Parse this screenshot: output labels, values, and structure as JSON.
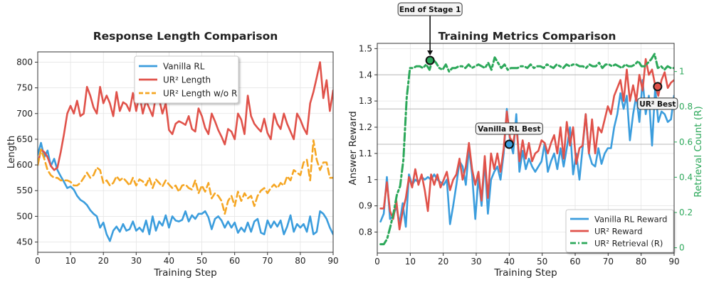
{
  "chart_data": [
    {
      "type": "line",
      "title": "Response Length Comparison",
      "xlabel": "Training Step",
      "ylabel": "Length",
      "xlim": [
        0,
        90
      ],
      "ylim": [
        430,
        820
      ],
      "xticks": [
        0,
        10,
        20,
        30,
        40,
        50,
        60,
        70,
        80,
        90
      ],
      "yticks": [
        450,
        500,
        550,
        600,
        650,
        700,
        750,
        800
      ],
      "grid": true,
      "legend_position": "top-center",
      "series": [
        {
          "name": "Vanilla RL",
          "color": "#3b9ddd",
          "style": "solid",
          "values": [
            620,
            643,
            615,
            628,
            598,
            612,
            590,
            578,
            567,
            555,
            558,
            552,
            540,
            532,
            528,
            522,
            512,
            505,
            500,
            478,
            488,
            465,
            452,
            472,
            480,
            470,
            485,
            472,
            475,
            490,
            472,
            478,
            470,
            492,
            465,
            500,
            472,
            490,
            482,
            502,
            478,
            500,
            492,
            490,
            493,
            510,
            490,
            502,
            495,
            505,
            505,
            510,
            498,
            475,
            495,
            500,
            492,
            478,
            490,
            478,
            488,
            468,
            478,
            470,
            488,
            470,
            490,
            495,
            468,
            465,
            492,
            478,
            490,
            480,
            492,
            465,
            480,
            502,
            470,
            485,
            478,
            485,
            470,
            500,
            465,
            470,
            510,
            505,
            495,
            478,
            465
          ]
        },
        {
          "name": "UR² Length",
          "color": "#e0524a",
          "style": "solid",
          "values": [
            600,
            630,
            625,
            615,
            598,
            590,
            595,
            625,
            660,
            700,
            715,
            700,
            725,
            695,
            700,
            752,
            735,
            712,
            700,
            752,
            720,
            735,
            720,
            695,
            742,
            705,
            722,
            718,
            705,
            740,
            705,
            738,
            700,
            725,
            710,
            695,
            735,
            728,
            700,
            720,
            668,
            660,
            680,
            685,
            682,
            678,
            695,
            670,
            665,
            710,
            695,
            672,
            660,
            700,
            685,
            668,
            655,
            640,
            670,
            665,
            650,
            700,
            688,
            660,
            735,
            695,
            680,
            672,
            665,
            690,
            662,
            650,
            700,
            680,
            670,
            700,
            680,
            665,
            650,
            700,
            688,
            672,
            660,
            720,
            742,
            770,
            800,
            730,
            765,
            705,
            745,
            720
          ]
        },
        {
          "name": "UR² Length w/o R",
          "color": "#f5a623",
          "style": "dashed",
          "values": [
            600,
            630,
            612,
            590,
            580,
            575,
            575,
            570,
            570,
            570,
            567,
            560,
            560,
            565,
            575,
            585,
            575,
            580,
            595,
            590,
            565,
            570,
            560,
            565,
            578,
            570,
            575,
            568,
            560,
            575,
            560,
            572,
            568,
            560,
            575,
            555,
            572,
            565,
            558,
            570,
            562,
            555,
            560,
            548,
            560,
            562,
            555,
            552,
            570,
            545,
            560,
            548,
            565,
            535,
            545,
            540,
            530,
            505,
            530,
            540,
            520,
            548,
            530,
            545,
            535,
            540,
            520,
            540,
            550,
            555,
            545,
            555,
            562,
            555,
            565,
            560,
            578,
            570,
            590,
            585,
            580,
            605,
            610,
            570,
            648,
            610,
            590,
            605,
            605,
            575,
            575
          ]
        }
      ]
    },
    {
      "type": "line",
      "title": "Training Metrics Comparison",
      "xlabel": "Training Step",
      "ylabel": "Answer Reward",
      "ylabel_right": "Retrieval Count (R)",
      "xlim": [
        0,
        90
      ],
      "ylim": [
        0.72,
        1.52
      ],
      "ylim_right": [
        -0.03,
        1.16
      ],
      "xticks": [
        0,
        10,
        20,
        30,
        40,
        50,
        60,
        70,
        80,
        90
      ],
      "yticks": [
        0.8,
        0.9,
        1.0,
        1.1,
        1.2,
        1.3,
        1.4,
        1.5
      ],
      "yticks_right": [
        0.0,
        0.2,
        0.4,
        0.6,
        0.8,
        1.0
      ],
      "right_axis_color": "#2ca85a",
      "grid": true,
      "reference_lines": [
        1.4,
        1.27,
        1.135
      ],
      "legend_position": "bottom-right",
      "series": [
        {
          "name": "Vanilla RL Reward",
          "color": "#3b9ddd",
          "style": "solid",
          "axis": "left",
          "values": [
            0.84,
            0.87,
            1.01,
            0.85,
            0.86,
            0.9,
            0.83,
            0.91,
            0.82,
            1.02,
            0.98,
            1.0,
            0.99,
            1.01,
            1.0,
            1.01,
            1.0,
            1.02,
            1.0,
            0.99,
            0.98,
            1.0,
            0.83,
            0.9,
            0.98,
            1.07,
            1.05,
            0.98,
            1.12,
            1.02,
            0.85,
            1.01,
            0.9,
            1.07,
            0.87,
            1.0,
            1.03,
            1.05,
            1.0,
            1.1,
            1.27,
            1.15,
            1.1,
            1.25,
            1.03,
            1.11,
            1.04,
            1.08,
            1.05,
            1.03,
            1.05,
            1.07,
            1.14,
            1.03,
            1.07,
            1.1,
            1.04,
            1.12,
            1.05,
            1.12,
            1.2,
            1.02,
            1.1,
            1.0,
            1.12,
            1.25,
            1.1,
            1.06,
            1.05,
            1.12,
            1.06,
            1.1,
            1.12,
            1.12,
            1.2,
            1.25,
            1.33,
            1.27,
            1.32,
            1.15,
            1.25,
            1.32,
            1.22,
            1.38,
            1.25,
            1.32,
            1.13,
            1.35,
            1.22,
            1.26,
            1.25,
            1.22,
            1.23,
            1.32
          ]
        },
        {
          "name": "UR² Reward",
          "color": "#e0524a",
          "style": "solid",
          "axis": "left",
          "values": [
            0.89,
            0.89,
            0.99,
            0.88,
            0.85,
            0.92,
            0.81,
            0.88,
            0.93,
            1.01,
            0.97,
            1.04,
            0.98,
            1.02,
            0.96,
            0.88,
            1.02,
            0.98,
            1.02,
            0.97,
            1.0,
            1.03,
            0.96,
            1.0,
            1.02,
            1.08,
            1.0,
            1.05,
            1.14,
            1.04,
            0.98,
            1.03,
            0.92,
            1.09,
            0.93,
            1.1,
            1.04,
            1.1,
            1.03,
            1.12,
            1.26,
            1.16,
            1.14,
            1.21,
            1.07,
            1.15,
            1.08,
            1.14,
            1.07,
            1.1,
            1.11,
            1.15,
            1.14,
            1.1,
            1.14,
            1.17,
            1.1,
            1.2,
            1.08,
            1.22,
            1.13,
            1.2,
            1.06,
            1.12,
            1.13,
            1.25,
            1.1,
            1.23,
            1.1,
            1.2,
            1.18,
            1.23,
            1.28,
            1.25,
            1.32,
            1.35,
            1.38,
            1.3,
            1.42,
            1.3,
            1.36,
            1.3,
            1.4,
            1.34,
            1.46,
            1.4,
            1.42,
            1.36,
            1.32,
            1.38,
            1.41,
            1.35,
            1.37,
            1.38
          ]
        },
        {
          "name": "UR² Retrieval (R)",
          "color": "#2ca85a",
          "style": "dashdot",
          "axis": "right",
          "values": [
            0.02,
            0.02,
            0.05,
            0.12,
            0.2,
            0.3,
            0.35,
            0.5,
            0.85,
            1.02,
            1.02,
            1.03,
            1.03,
            1.02,
            1.04,
            1.01,
            1.07,
            1.05,
            1.02,
            1.01,
            1.04,
            1.0,
            1.02,
            1.02,
            1.03,
            1.03,
            1.02,
            1.04,
            1.02,
            1.03,
            1.04,
            1.03,
            1.02,
            1.05,
            1.01,
            1.08,
            1.05,
            1.02,
            1.04,
            1.01,
            1.02,
            1.02,
            1.02,
            1.03,
            1.03,
            1.02,
            1.04,
            1.02,
            1.03,
            1.03,
            1.02,
            1.04,
            1.03,
            1.02,
            1.04,
            1.03,
            1.02,
            1.04,
            1.03,
            1.04,
            1.04,
            1.03,
            1.03,
            1.02,
            1.04,
            1.03,
            1.03,
            1.05,
            1.02,
            1.04,
            1.04,
            1.03,
            1.04,
            1.03,
            1.02,
            1.04,
            1.03,
            1.03,
            1.04,
            1.06,
            1.03,
            1.03,
            1.05,
            1.07,
            1.1,
            1.02,
            1.03,
            1.01,
            1.03,
            1.02,
            1.02
          ]
        }
      ],
      "markers": [
        {
          "label": "End of Stage 1",
          "x": 16,
          "y": 1.455,
          "color": "#2ca85a",
          "arrow": true
        },
        {
          "label": "Vanilla RL Best",
          "x": 40,
          "y": 1.135,
          "color": "#3b9ddd"
        },
        {
          "label": "UR² Best",
          "x": 85,
          "y": 1.355,
          "color": "#e0524a"
        }
      ]
    }
  ]
}
